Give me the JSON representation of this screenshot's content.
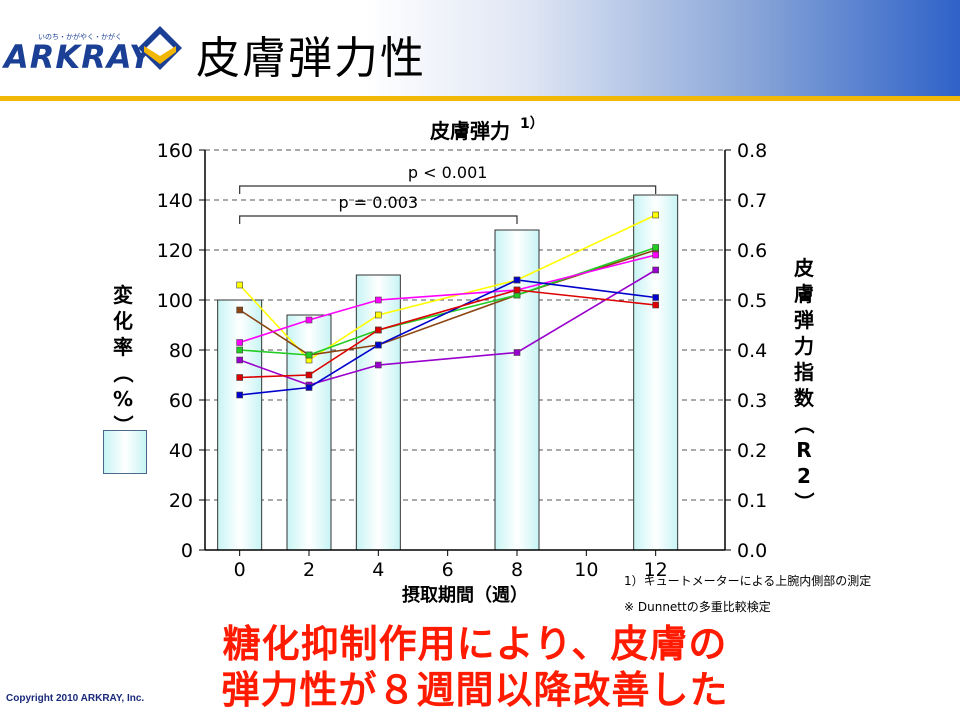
{
  "header": {
    "brand": "ARKRAY",
    "brand_tagline": "いのち・かがやく・かがく",
    "title": "皮膚弾力性",
    "logo_icon": "arkray-chevron-icon"
  },
  "colors": {
    "accent_line": "#f2b705",
    "conclusion": "#ff1a00",
    "bar_fill": "#c8f4f4"
  },
  "chart_data": {
    "type": "bar",
    "title": "皮膚弾力",
    "title_superscript": "1）",
    "xlabel": "摂取期間（週）",
    "ylabel": "変化率（%）",
    "y2label": "皮膚弾力指数（R2）",
    "x_ticks": [
      0,
      2,
      4,
      6,
      8,
      10,
      12
    ],
    "y_ticks": [
      0,
      20,
      40,
      60,
      80,
      100,
      120,
      140,
      160
    ],
    "y2_ticks": [
      "0.0",
      "0.1",
      "0.2",
      "0.3",
      "0.4",
      "0.5",
      "0.6",
      "0.7",
      "0.8"
    ],
    "xlim": [
      -1,
      14
    ],
    "ylim": [
      0,
      160
    ],
    "y2lim": [
      0,
      0.8
    ],
    "grid": "dashed horizontal",
    "bars": {
      "x": [
        0,
        2,
        4,
        8,
        12
      ],
      "values": [
        100,
        94,
        110,
        128,
        142
      ]
    },
    "series": [
      {
        "color": "#ffff00",
        "x": [
          0,
          2,
          4,
          8,
          12
        ],
        "y": [
          0.53,
          0.38,
          0.47,
          0.54,
          0.67
        ]
      },
      {
        "color": "#8b4513",
        "x": [
          0,
          2,
          4,
          8,
          12
        ],
        "y": [
          0.48,
          0.39,
          0.41,
          0.51,
          0.6
        ]
      },
      {
        "color": "#22cc22",
        "x": [
          0,
          2,
          4,
          8,
          12
        ],
        "y": [
          0.4,
          0.39,
          0.44,
          0.51,
          0.605
        ]
      },
      {
        "color": "#ff00ff",
        "x": [
          0,
          2,
          4,
          8,
          12
        ],
        "y": [
          0.415,
          0.46,
          0.5,
          0.52,
          0.59
        ]
      },
      {
        "color": "#9900cc",
        "x": [
          0,
          2,
          4,
          8,
          12
        ],
        "y": [
          0.38,
          0.33,
          0.37,
          0.395,
          0.56
        ]
      },
      {
        "color": "#0000cc",
        "x": [
          0,
          2,
          4,
          8,
          12
        ],
        "y": [
          0.31,
          0.325,
          0.41,
          0.54,
          0.505
        ]
      },
      {
        "color": "#dd0000",
        "x": [
          0,
          2,
          4,
          8,
          12
        ],
        "y": [
          0.345,
          0.35,
          0.44,
          0.52,
          0.49
        ]
      }
    ],
    "annotations": [
      {
        "text": "p < 0.001",
        "from": 0,
        "to": 12
      },
      {
        "text": "p = 0.003",
        "from": 0,
        "to": 8
      }
    ]
  },
  "notes": {
    "note1": "1）キュートメーターによる上腕内側部の測定",
    "note2": "※ Dunnettの多重比較検定"
  },
  "conclusion": {
    "line1": "糖化抑制作用により、皮膚の",
    "line2": "弾力性が８週間以降改善した"
  },
  "copyright": "Copyright 2010 ARKRAY, Inc."
}
